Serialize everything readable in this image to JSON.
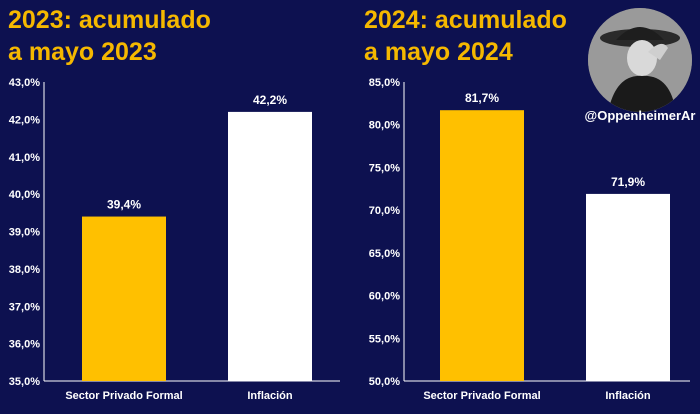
{
  "titles": {
    "left": [
      "2023: acumulado",
      "a mayo 2023"
    ],
    "right": [
      "2024: acumulado",
      "a mayo 2024"
    ]
  },
  "handle": "@OppenheimerAr",
  "colors": {
    "background": "#0d1150",
    "title": "#f5b800",
    "bar_primary": "#ffc000",
    "bar_secondary": "#ffffff",
    "text": "#ffffff"
  },
  "chart_data": [
    {
      "type": "bar",
      "categories": [
        "Sector Privado Formal",
        "Inflación"
      ],
      "values": [
        39.4,
        42.2
      ],
      "value_labels": [
        "39,4%",
        "42,2%"
      ],
      "bar_colors": [
        "#ffc000",
        "#ffffff"
      ],
      "ylim": [
        35,
        43
      ],
      "yticks": [
        35,
        36,
        37,
        38,
        39,
        40,
        41,
        42,
        43
      ],
      "ytick_labels": [
        "35,0%",
        "36,0%",
        "37,0%",
        "38,0%",
        "39,0%",
        "40,0%",
        "41,0%",
        "42,0%",
        "43,0%"
      ],
      "grid": false
    },
    {
      "type": "bar",
      "categories": [
        "Sector Privado Formal",
        "Inflación"
      ],
      "values": [
        81.7,
        71.9
      ],
      "value_labels": [
        "81,7%",
        "71,9%"
      ],
      "bar_colors": [
        "#ffc000",
        "#ffffff"
      ],
      "ylim": [
        50,
        85
      ],
      "yticks": [
        50,
        55,
        60,
        65,
        70,
        75,
        80,
        85
      ],
      "ytick_labels": [
        "50,0%",
        "55,0%",
        "60,0%",
        "65,0%",
        "70,0%",
        "75,0%",
        "80,0%",
        "85,0%"
      ],
      "grid": false
    }
  ]
}
